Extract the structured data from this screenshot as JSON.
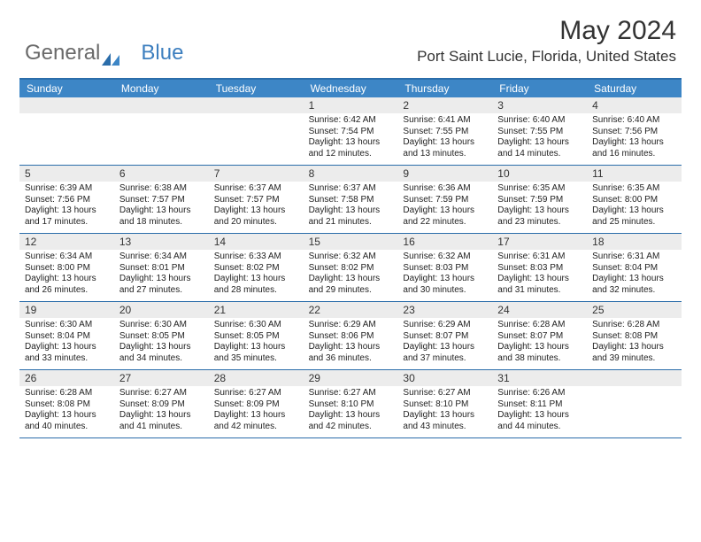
{
  "brand": {
    "part1": "General",
    "part2": "Blue"
  },
  "title": "May 2024",
  "location": "Port Saint Lucie, Florida, United States",
  "colors": {
    "header_bar": "#3d86c6",
    "header_border": "#2b6daa",
    "daynum_bg": "#ececec",
    "text": "#333333",
    "logo_gray": "#6a6a6a",
    "logo_blue": "#3d7fbf"
  },
  "day_names": [
    "Sunday",
    "Monday",
    "Tuesday",
    "Wednesday",
    "Thursday",
    "Friday",
    "Saturday"
  ],
  "weeks": [
    [
      {
        "n": "",
        "sunrise": "",
        "sunset": "",
        "daylight": ""
      },
      {
        "n": "",
        "sunrise": "",
        "sunset": "",
        "daylight": ""
      },
      {
        "n": "",
        "sunrise": "",
        "sunset": "",
        "daylight": ""
      },
      {
        "n": "1",
        "sunrise": "6:42 AM",
        "sunset": "7:54 PM",
        "daylight": "13 hours and 12 minutes."
      },
      {
        "n": "2",
        "sunrise": "6:41 AM",
        "sunset": "7:55 PM",
        "daylight": "13 hours and 13 minutes."
      },
      {
        "n": "3",
        "sunrise": "6:40 AM",
        "sunset": "7:55 PM",
        "daylight": "13 hours and 14 minutes."
      },
      {
        "n": "4",
        "sunrise": "6:40 AM",
        "sunset": "7:56 PM",
        "daylight": "13 hours and 16 minutes."
      }
    ],
    [
      {
        "n": "5",
        "sunrise": "6:39 AM",
        "sunset": "7:56 PM",
        "daylight": "13 hours and 17 minutes."
      },
      {
        "n": "6",
        "sunrise": "6:38 AM",
        "sunset": "7:57 PM",
        "daylight": "13 hours and 18 minutes."
      },
      {
        "n": "7",
        "sunrise": "6:37 AM",
        "sunset": "7:57 PM",
        "daylight": "13 hours and 20 minutes."
      },
      {
        "n": "8",
        "sunrise": "6:37 AM",
        "sunset": "7:58 PM",
        "daylight": "13 hours and 21 minutes."
      },
      {
        "n": "9",
        "sunrise": "6:36 AM",
        "sunset": "7:59 PM",
        "daylight": "13 hours and 22 minutes."
      },
      {
        "n": "10",
        "sunrise": "6:35 AM",
        "sunset": "7:59 PM",
        "daylight": "13 hours and 23 minutes."
      },
      {
        "n": "11",
        "sunrise": "6:35 AM",
        "sunset": "8:00 PM",
        "daylight": "13 hours and 25 minutes."
      }
    ],
    [
      {
        "n": "12",
        "sunrise": "6:34 AM",
        "sunset": "8:00 PM",
        "daylight": "13 hours and 26 minutes."
      },
      {
        "n": "13",
        "sunrise": "6:34 AM",
        "sunset": "8:01 PM",
        "daylight": "13 hours and 27 minutes."
      },
      {
        "n": "14",
        "sunrise": "6:33 AM",
        "sunset": "8:02 PM",
        "daylight": "13 hours and 28 minutes."
      },
      {
        "n": "15",
        "sunrise": "6:32 AM",
        "sunset": "8:02 PM",
        "daylight": "13 hours and 29 minutes."
      },
      {
        "n": "16",
        "sunrise": "6:32 AM",
        "sunset": "8:03 PM",
        "daylight": "13 hours and 30 minutes."
      },
      {
        "n": "17",
        "sunrise": "6:31 AM",
        "sunset": "8:03 PM",
        "daylight": "13 hours and 31 minutes."
      },
      {
        "n": "18",
        "sunrise": "6:31 AM",
        "sunset": "8:04 PM",
        "daylight": "13 hours and 32 minutes."
      }
    ],
    [
      {
        "n": "19",
        "sunrise": "6:30 AM",
        "sunset": "8:04 PM",
        "daylight": "13 hours and 33 minutes."
      },
      {
        "n": "20",
        "sunrise": "6:30 AM",
        "sunset": "8:05 PM",
        "daylight": "13 hours and 34 minutes."
      },
      {
        "n": "21",
        "sunrise": "6:30 AM",
        "sunset": "8:05 PM",
        "daylight": "13 hours and 35 minutes."
      },
      {
        "n": "22",
        "sunrise": "6:29 AM",
        "sunset": "8:06 PM",
        "daylight": "13 hours and 36 minutes."
      },
      {
        "n": "23",
        "sunrise": "6:29 AM",
        "sunset": "8:07 PM",
        "daylight": "13 hours and 37 minutes."
      },
      {
        "n": "24",
        "sunrise": "6:28 AM",
        "sunset": "8:07 PM",
        "daylight": "13 hours and 38 minutes."
      },
      {
        "n": "25",
        "sunrise": "6:28 AM",
        "sunset": "8:08 PM",
        "daylight": "13 hours and 39 minutes."
      }
    ],
    [
      {
        "n": "26",
        "sunrise": "6:28 AM",
        "sunset": "8:08 PM",
        "daylight": "13 hours and 40 minutes."
      },
      {
        "n": "27",
        "sunrise": "6:27 AM",
        "sunset": "8:09 PM",
        "daylight": "13 hours and 41 minutes."
      },
      {
        "n": "28",
        "sunrise": "6:27 AM",
        "sunset": "8:09 PM",
        "daylight": "13 hours and 42 minutes."
      },
      {
        "n": "29",
        "sunrise": "6:27 AM",
        "sunset": "8:10 PM",
        "daylight": "13 hours and 42 minutes."
      },
      {
        "n": "30",
        "sunrise": "6:27 AM",
        "sunset": "8:10 PM",
        "daylight": "13 hours and 43 minutes."
      },
      {
        "n": "31",
        "sunrise": "6:26 AM",
        "sunset": "8:11 PM",
        "daylight": "13 hours and 44 minutes."
      },
      {
        "n": "",
        "sunrise": "",
        "sunset": "",
        "daylight": ""
      }
    ]
  ]
}
